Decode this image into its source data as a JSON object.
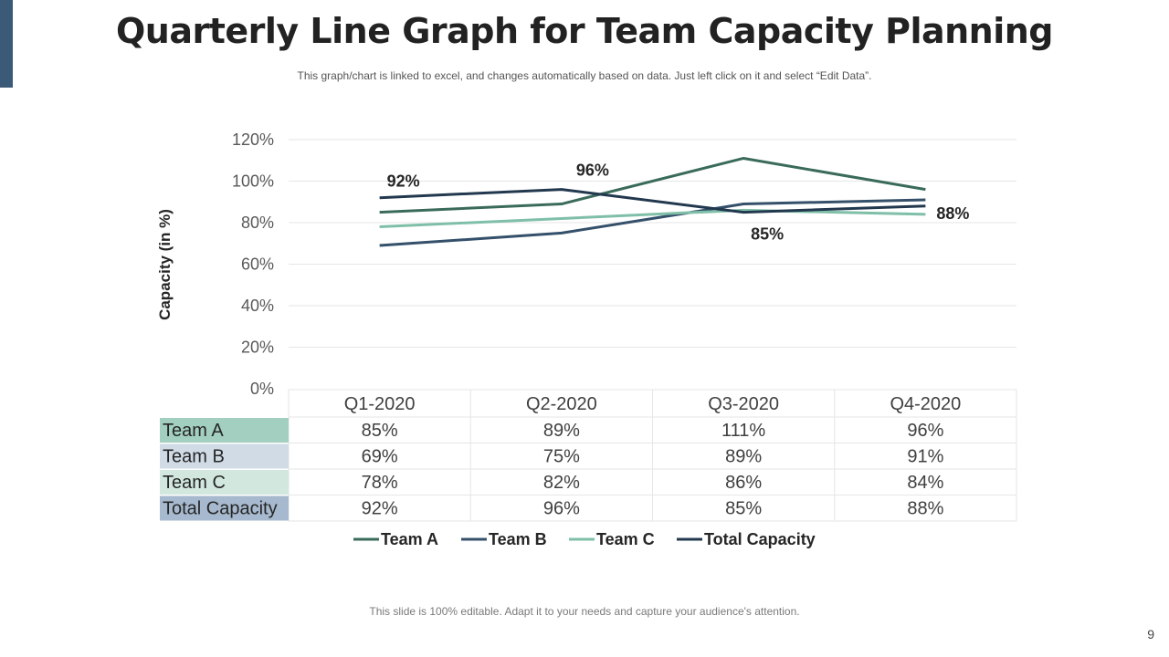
{
  "slide": {
    "title": "Quarterly Line Graph for Team Capacity Planning",
    "subtitle": "This graph/chart is linked to excel, and changes automatically based on data. Just left click on it and select “Edit Data”.",
    "footer": "This slide is 100% editable. Adapt it to your needs and capture your audience's attention.",
    "page_number": "9",
    "accent_color": "#3a5a78"
  },
  "chart_data": {
    "type": "line",
    "title": "",
    "xlabel": "",
    "ylabel": "Capacity (in %)",
    "ylim": [
      0,
      120
    ],
    "yticks": [
      0,
      20,
      40,
      60,
      80,
      100,
      120
    ],
    "ytick_labels": [
      "0%",
      "20%",
      "40%",
      "60%",
      "80%",
      "100%",
      "120%"
    ],
    "grid": true,
    "legend_position": "bottom",
    "categories": [
      "Q1-2020",
      "Q2-2020",
      "Q3-2020",
      "Q4-2020"
    ],
    "series": [
      {
        "name": "Team A",
        "values": [
          85,
          89,
          111,
          96
        ],
        "color": "#3a6b5a",
        "row_bg": "#a3cfc0"
      },
      {
        "name": "Team B",
        "values": [
          69,
          75,
          89,
          91
        ],
        "color": "#34506a",
        "row_bg": "#d0dbe6"
      },
      {
        "name": "Team C",
        "values": [
          78,
          82,
          86,
          84
        ],
        "color": "#7fbfa8",
        "row_bg": "#d2e8df"
      },
      {
        "name": "Total Capacity",
        "values": [
          92,
          96,
          85,
          88
        ],
        "color": "#22384e",
        "row_bg": "#a7b9cf"
      }
    ],
    "data_labels": {
      "series": "Total Capacity",
      "labels": [
        "92%",
        "96%",
        "85%",
        "88%"
      ]
    },
    "data_table": {
      "headers": [
        "Q1-2020",
        "Q2-2020",
        "Q3-2020",
        "Q4-2020"
      ],
      "rows": [
        {
          "label": "Team A",
          "cells": [
            "85%",
            "89%",
            "111%",
            "96%"
          ]
        },
        {
          "label": "Team B",
          "cells": [
            "69%",
            "75%",
            "89%",
            "91%"
          ]
        },
        {
          "label": "Team C",
          "cells": [
            "78%",
            "82%",
            "86%",
            "84%"
          ]
        },
        {
          "label": "Total Capacity",
          "cells": [
            "92%",
            "96%",
            "85%",
            "88%"
          ]
        }
      ]
    }
  }
}
